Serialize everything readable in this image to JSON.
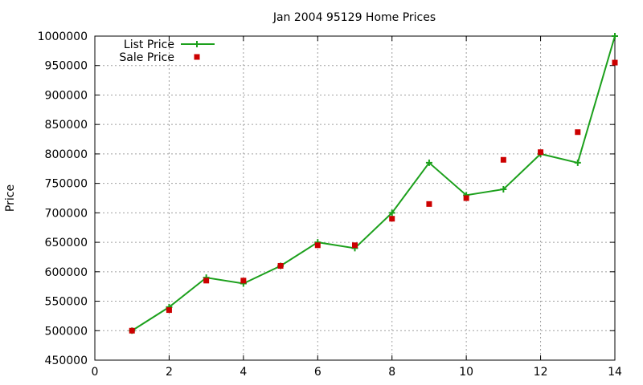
{
  "chart_data": {
    "type": "line",
    "title": "Jan 2004 95129 Home Prices",
    "xlabel": "",
    "ylabel": "Price",
    "xlim": [
      0,
      14
    ],
    "ylim": [
      450000,
      1000000
    ],
    "x_ticks": [
      0,
      2,
      4,
      6,
      8,
      10,
      12,
      14
    ],
    "y_ticks": [
      450000,
      500000,
      550000,
      600000,
      650000,
      700000,
      750000,
      800000,
      850000,
      900000,
      950000,
      1000000
    ],
    "grid": true,
    "legend_position": "top-left",
    "series": [
      {
        "name": "List Price",
        "style": "line-with-plus-markers",
        "color": "#1ca01c",
        "x": [
          1,
          2,
          3,
          4,
          5,
          6,
          7,
          8,
          9,
          10,
          11,
          12,
          13,
          14
        ],
        "y": [
          500000,
          540000,
          590000,
          580000,
          610000,
          650000,
          640000,
          700000,
          785000,
          730000,
          740000,
          800000,
          785000,
          1000000
        ]
      },
      {
        "name": "Sale Price",
        "style": "square-markers",
        "color": "#cc0000",
        "x": [
          1,
          2,
          3,
          4,
          5,
          6,
          7,
          8,
          9,
          10,
          11,
          12,
          13,
          14
        ],
        "y": [
          500000,
          535000,
          585000,
          585000,
          610000,
          645000,
          645000,
          690000,
          715000,
          725000,
          790000,
          803000,
          837000,
          955000
        ]
      }
    ]
  }
}
